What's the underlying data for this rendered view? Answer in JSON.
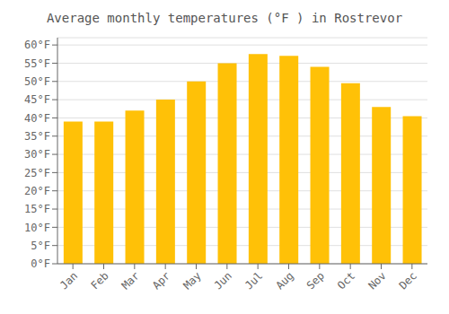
{
  "chart_data": {
    "type": "bar",
    "title": "Average monthly temperatures (°F ) in Rostrevor",
    "categories": [
      "Jan",
      "Feb",
      "Mar",
      "Apr",
      "May",
      "Jun",
      "Jul",
      "Aug",
      "Sep",
      "Oct",
      "Nov",
      "Dec"
    ],
    "values": [
      39,
      39,
      42,
      45,
      50,
      55,
      57.5,
      57,
      54,
      49.5,
      43,
      40.5
    ],
    "color": "#FFC107",
    "ylim": [
      0,
      62
    ],
    "yticks": [
      {
        "value": 0,
        "label": "0°F"
      },
      {
        "value": 5,
        "label": "5°F"
      },
      {
        "value": 10,
        "label": "10°F"
      },
      {
        "value": 15,
        "label": "15°F"
      },
      {
        "value": 20,
        "label": "20°F"
      },
      {
        "value": 25,
        "label": "25°F"
      },
      {
        "value": 30,
        "label": "30°F"
      },
      {
        "value": 35,
        "label": "35°F"
      },
      {
        "value": 40,
        "label": "40°F"
      },
      {
        "value": 45,
        "label": "45°F"
      },
      {
        "value": 50,
        "label": "50°F"
      },
      {
        "value": 55,
        "label": "55°F"
      },
      {
        "value": 60,
        "label": "60°F"
      }
    ],
    "grid": true
  }
}
